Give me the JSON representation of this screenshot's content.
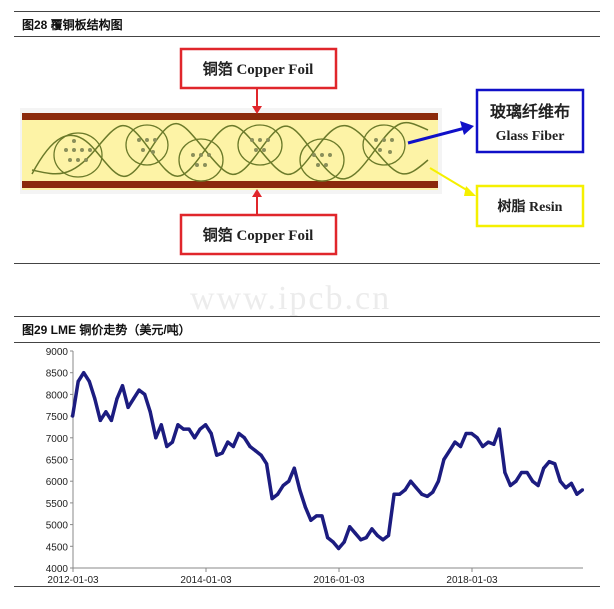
{
  "figure28": {
    "title": "图28  覆铜板结构图",
    "labels": {
      "copper_top": "铜箔 Copper Foil",
      "copper_bottom": "铜箔 Copper Foil",
      "glass_fiber_cn": "玻璃纤维布",
      "glass_fiber_en": "Glass Fiber",
      "resin": "树脂 Resin"
    },
    "colors": {
      "copper": "#8b2a0c",
      "resin": "#fdf3a6",
      "copper_box": "#e0262b",
      "glass_box": "#1010c8",
      "resin_box": "#f5f000"
    }
  },
  "watermark": "www.ipcb.cn",
  "figure29": {
    "title": "图29  LME 铜价走势（美元/吨）"
  },
  "chart_data": {
    "type": "line",
    "title": "图29  LME 铜价走势（美元/吨）",
    "xlabel": "",
    "ylabel": "",
    "ylim": [
      4000,
      9000
    ],
    "yticks": [
      4000,
      4500,
      5000,
      5500,
      6000,
      6500,
      7000,
      7500,
      8000,
      8500,
      9000
    ],
    "xticks": [
      "2012-01-03",
      "2014-01-03",
      "2016-01-03",
      "2018-01-03"
    ],
    "grid": false,
    "line_color": "#1c1c80",
    "series": [
      {
        "x": [
          "2012-01",
          "2012-02",
          "2012-03",
          "2012-04",
          "2012-05",
          "2012-06",
          "2012-07",
          "2012-08",
          "2012-09",
          "2012-10",
          "2012-11",
          "2012-12",
          "2013-01",
          "2013-02",
          "2013-03",
          "2013-04",
          "2013-05",
          "2013-06",
          "2013-07",
          "2013-08",
          "2013-09",
          "2013-10",
          "2013-11",
          "2013-12",
          "2014-01",
          "2014-02",
          "2014-03",
          "2014-04",
          "2014-05",
          "2014-06",
          "2014-07",
          "2014-08",
          "2014-09",
          "2014-10",
          "2014-11",
          "2014-12",
          "2015-01",
          "2015-02",
          "2015-03",
          "2015-04",
          "2015-05",
          "2015-06",
          "2015-07",
          "2015-08",
          "2015-09",
          "2015-10",
          "2015-11",
          "2015-12",
          "2016-01",
          "2016-02",
          "2016-03",
          "2016-04",
          "2016-05",
          "2016-06",
          "2016-07",
          "2016-08",
          "2016-09",
          "2016-10",
          "2016-11",
          "2016-12",
          "2017-01",
          "2017-02",
          "2017-03",
          "2017-04",
          "2017-05",
          "2017-06",
          "2017-07",
          "2017-08",
          "2017-09",
          "2017-10",
          "2017-11",
          "2017-12",
          "2018-01",
          "2018-02",
          "2018-03",
          "2018-04",
          "2018-05",
          "2018-06",
          "2018-07",
          "2018-08",
          "2018-09",
          "2018-10",
          "2018-11",
          "2018-12",
          "2019-01",
          "2019-02",
          "2019-03",
          "2019-04",
          "2019-05",
          "2019-06",
          "2019-07",
          "2019-08",
          "2019-09"
        ],
        "values": [
          7500,
          8300,
          8500,
          8300,
          7900,
          7400,
          7600,
          7400,
          7900,
          8200,
          7700,
          7900,
          8100,
          8000,
          7600,
          7000,
          7300,
          6800,
          6900,
          7300,
          7200,
          7200,
          7000,
          7200,
          7300,
          7100,
          6600,
          6650,
          6900,
          6800,
          7100,
          7000,
          6800,
          6700,
          6600,
          6400,
          5600,
          5700,
          5900,
          6000,
          6300,
          5800,
          5400,
          5100,
          5200,
          5200,
          4700,
          4600,
          4450,
          4600,
          4950,
          4800,
          4650,
          4700,
          4900,
          4750,
          4650,
          4750,
          5700,
          5700,
          5800,
          6000,
          5850,
          5700,
          5650,
          5750,
          6000,
          6500,
          6700,
          6900,
          6800,
          7100,
          7100,
          7000,
          6800,
          6900,
          6850,
          7200,
          6200,
          5900,
          6000,
          6200,
          6200,
          6000,
          5900,
          6300,
          6450,
          6400,
          6000,
          5850,
          5950,
          5700,
          5800
        ]
      }
    ]
  }
}
